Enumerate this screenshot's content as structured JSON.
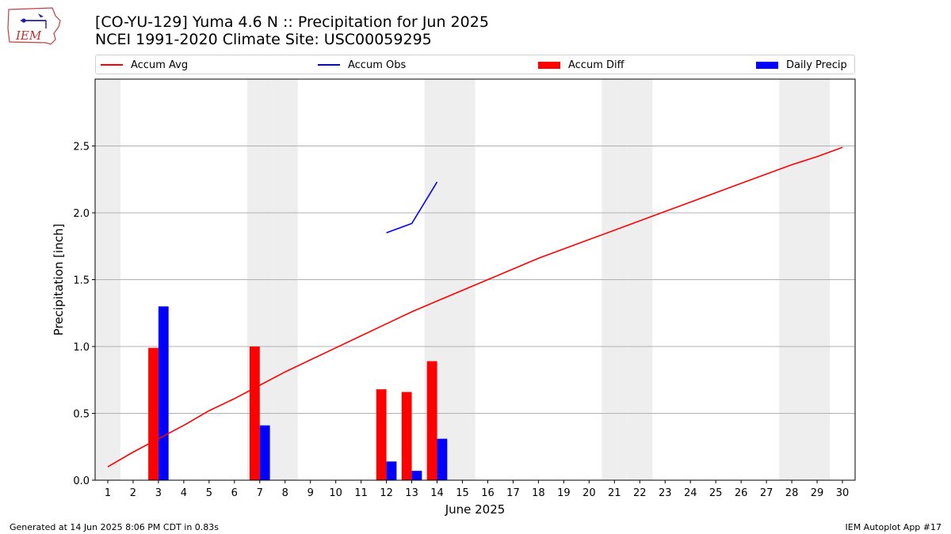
{
  "header": {
    "title_line1": "[CO-YU-129] Yuma 4.6 N :: Precipitation for Jun 2025",
    "title_line2": "NCEI 1991-2020 Climate Site: USC00059295",
    "logo_text": "IEM"
  },
  "legend": [
    {
      "label": "Accum Avg",
      "kind": "line",
      "color": "#ff0000"
    },
    {
      "label": "Accum Obs",
      "kind": "line",
      "color": "#0000ff"
    },
    {
      "label": "Accum Diff",
      "kind": "patch",
      "color": "#ff0000"
    },
    {
      "label": "Daily Precip",
      "kind": "patch",
      "color": "#0000ff"
    }
  ],
  "footer": {
    "left": "Generated at 14 Jun 2025 8:06 PM CDT in 0.83s",
    "right": "IEM Autoplot App #17"
  },
  "chart_data": {
    "type": "bar",
    "xlabel": "June 2025",
    "ylabel": "Precipitation [inch]",
    "x": [
      1,
      2,
      3,
      4,
      5,
      6,
      7,
      8,
      9,
      10,
      11,
      12,
      13,
      14,
      15,
      16,
      17,
      18,
      19,
      20,
      21,
      22,
      23,
      24,
      25,
      26,
      27,
      28,
      29,
      30
    ],
    "ylim": [
      0,
      3.0
    ],
    "yticks": [
      0.0,
      0.5,
      1.0,
      1.5,
      2.0,
      2.5
    ],
    "ytick_labels": [
      "0.0",
      "0.5",
      "1.0",
      "1.5",
      "2.0",
      "2.5"
    ],
    "grid": true,
    "weekend_shading_days": [
      1,
      7,
      8,
      14,
      15,
      21,
      22,
      28,
      29
    ],
    "shade_color": "#eeeeee",
    "series": [
      {
        "name": "Accum Avg",
        "type": "line",
        "color": "#ff0000",
        "x": [
          1,
          2,
          3,
          4,
          5,
          6,
          7,
          8,
          9,
          10,
          11,
          12,
          13,
          14,
          15,
          16,
          17,
          18,
          19,
          20,
          21,
          22,
          23,
          24,
          25,
          26,
          27,
          28,
          29,
          30
        ],
        "values": [
          0.1,
          0.21,
          0.31,
          0.41,
          0.52,
          0.61,
          0.71,
          0.81,
          0.9,
          0.99,
          1.08,
          1.17,
          1.26,
          1.34,
          1.42,
          1.5,
          1.58,
          1.66,
          1.73,
          1.8,
          1.87,
          1.94,
          2.01,
          2.08,
          2.15,
          2.22,
          2.29,
          2.36,
          2.42,
          2.49
        ]
      },
      {
        "name": "Accum Obs",
        "type": "line",
        "color": "#0000ff",
        "x": [
          12,
          13,
          14
        ],
        "values": [
          1.85,
          1.92,
          2.23
        ]
      },
      {
        "name": "Accum Diff",
        "type": "bar",
        "color": "#ff0000",
        "x": [
          3,
          7,
          12,
          13,
          14
        ],
        "values": [
          0.99,
          1.0,
          0.68,
          0.66,
          0.89
        ]
      },
      {
        "name": "Daily Precip",
        "type": "bar",
        "color": "#0000ff",
        "x": [
          3,
          7,
          12,
          13,
          14
        ],
        "values": [
          1.3,
          0.41,
          0.14,
          0.07,
          0.31
        ]
      }
    ]
  }
}
